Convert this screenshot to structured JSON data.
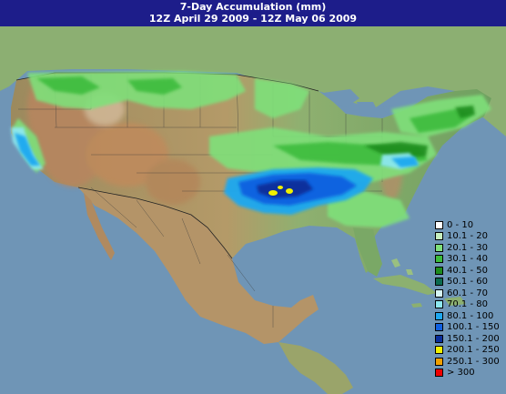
{
  "header": {
    "title": "7-Day Accumulation (mm)",
    "period": "12Z April 29 2009 - 12Z May 06 2009"
  },
  "map": {
    "colors": {
      "ocean": "#6f95b6",
      "terrain_low": "#7fa86a",
      "terrain_mid": "#b0a072",
      "terrain_high": "#b8855e",
      "terrain_peak": "#e8e0d8"
    }
  },
  "legend": {
    "items": [
      {
        "label": "0 - 10",
        "color": "#ffffff"
      },
      {
        "label": "10.1 - 20",
        "color": "#c8f0c0"
      },
      {
        "label": "20.1 - 30",
        "color": "#7fe07a"
      },
      {
        "label": "30.1 - 40",
        "color": "#3cbc3c"
      },
      {
        "label": "40.1 - 50",
        "color": "#1e8c1e"
      },
      {
        "label": "50.1 - 60",
        "color": "#0c6a4e"
      },
      {
        "label": "60.1 - 70",
        "color": "#d6f5f5"
      },
      {
        "label": "70.1 - 80",
        "color": "#8ee8f0"
      },
      {
        "label": "80.1 - 100",
        "color": "#1ea8f0"
      },
      {
        "label": "100.1 - 150",
        "color": "#1060e0"
      },
      {
        "label": "150.1 - 200",
        "color": "#0a2e9a"
      },
      {
        "label": "200.1 - 250",
        "color": "#f0f000"
      },
      {
        "label": "250.1 - 300",
        "color": "#f0a000"
      },
      {
        "label": "> 300",
        "color": "#f00000"
      }
    ]
  }
}
